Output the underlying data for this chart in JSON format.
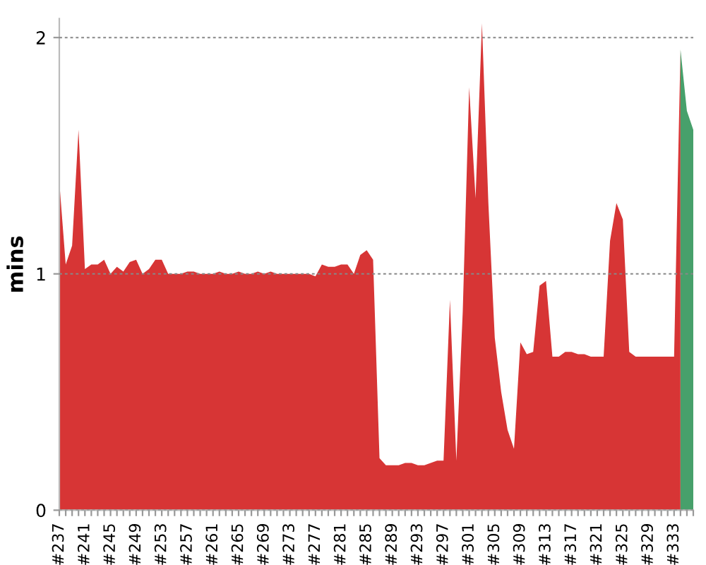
{
  "chart_data": {
    "type": "area",
    "ylabel": "mins",
    "categories": [
      "#237",
      null,
      null,
      null,
      "#241",
      null,
      null,
      null,
      "#245",
      null,
      null,
      null,
      "#249",
      null,
      null,
      null,
      "#253",
      null,
      null,
      null,
      "#257",
      null,
      null,
      null,
      "#261",
      null,
      null,
      null,
      "#265",
      null,
      null,
      null,
      "#269",
      null,
      null,
      null,
      "#273",
      null,
      null,
      null,
      "#277",
      null,
      null,
      null,
      "#281",
      null,
      null,
      null,
      "#285",
      null,
      null,
      null,
      "#289",
      null,
      null,
      null,
      "#293",
      null,
      null,
      null,
      "#297",
      null,
      null,
      null,
      "#301",
      null,
      null,
      null,
      "#305",
      null,
      null,
      null,
      "#309",
      null,
      null,
      null,
      "#313",
      null,
      null,
      null,
      "#317",
      null,
      null,
      null,
      "#321",
      null,
      null,
      null,
      "#325",
      null,
      null,
      null,
      "#329",
      null,
      null,
      null,
      "#333",
      null,
      null,
      null
    ],
    "series": [
      {
        "color": "#d73535",
        "values": [
          1.39,
          1.04,
          1.12,
          1.61,
          1.02,
          1.04,
          1.04,
          1.06,
          1.0,
          1.03,
          1.01,
          1.05,
          1.06,
          1.0,
          1.02,
          1.06,
          1.06,
          1.0,
          1.0,
          1.0,
          1.01,
          1.01,
          1.0,
          1.0,
          1.0,
          1.01,
          1.0,
          1.0,
          1.01,
          1.0,
          1.0,
          1.01,
          1.0,
          1.01,
          1.0,
          1.0,
          1.0,
          1.0,
          1.0,
          1.0,
          0.99,
          1.04,
          1.03,
          1.03,
          1.04,
          1.04,
          1.0,
          1.08,
          1.1,
          1.06,
          0.22,
          0.19,
          0.19,
          0.19,
          0.2,
          0.2,
          0.19,
          0.19,
          0.2,
          0.21,
          0.21,
          0.89,
          0.21,
          0.84,
          1.79,
          1.32,
          2.06,
          1.3,
          0.73,
          0.5,
          0.34,
          0.26,
          0.71,
          0.66,
          0.67,
          0.95,
          0.97,
          0.65,
          0.65,
          0.67,
          0.67,
          0.66,
          0.66,
          0.65,
          0.65,
          0.65,
          1.14,
          1.3,
          1.23,
          0.67,
          0.65,
          0.65,
          0.65,
          0.65,
          0.65,
          0.65,
          0.65,
          1.95,
          null,
          null
        ]
      },
      {
        "color": "#47a06b",
        "values": [
          null,
          null,
          null,
          null,
          null,
          null,
          null,
          null,
          null,
          null,
          null,
          null,
          null,
          null,
          null,
          null,
          null,
          null,
          null,
          null,
          null,
          null,
          null,
          null,
          null,
          null,
          null,
          null,
          null,
          null,
          null,
          null,
          null,
          null,
          null,
          null,
          null,
          null,
          null,
          null,
          null,
          null,
          null,
          null,
          null,
          null,
          null,
          null,
          null,
          null,
          null,
          null,
          null,
          null,
          null,
          null,
          null,
          null,
          null,
          null,
          null,
          null,
          null,
          null,
          null,
          null,
          null,
          null,
          null,
          null,
          null,
          null,
          null,
          null,
          null,
          null,
          null,
          null,
          null,
          null,
          null,
          null,
          null,
          null,
          null,
          null,
          null,
          null,
          null,
          null,
          null,
          null,
          null,
          null,
          null,
          null,
          null,
          1.95,
          1.69,
          1.61
        ]
      }
    ],
    "ylim": [
      0,
      2.08
    ],
    "yticks": [
      0,
      1,
      2
    ],
    "grid": "y"
  }
}
